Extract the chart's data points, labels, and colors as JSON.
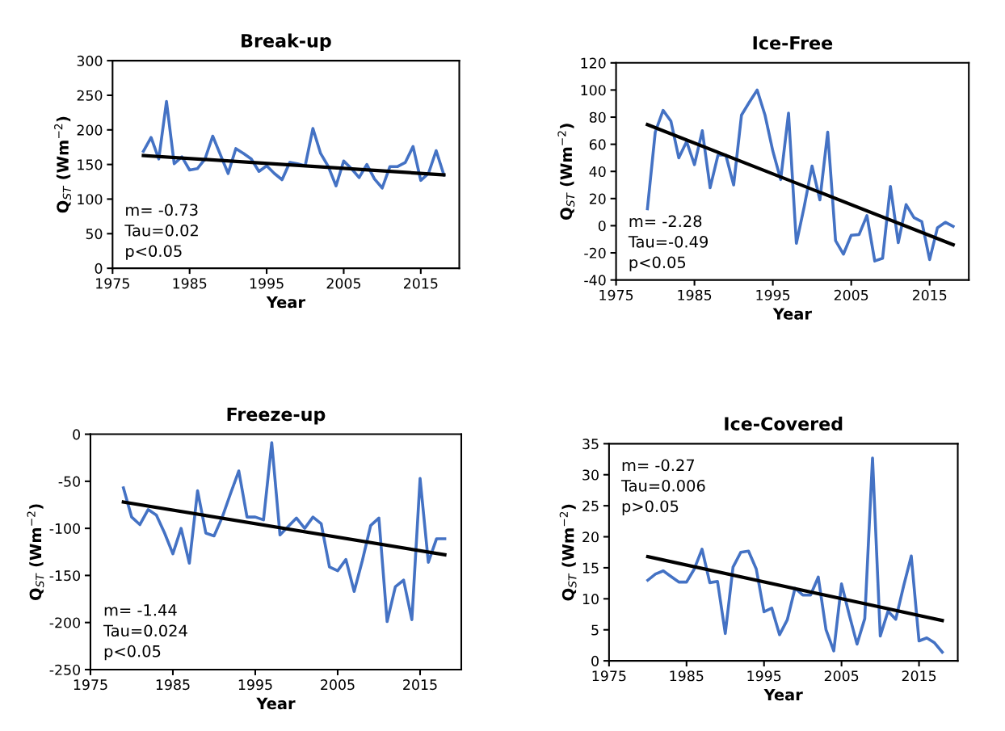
{
  "chart_data": [
    {
      "type": "line",
      "title": "Break-up",
      "xlabel": "Year",
      "ylabel": "Q$_{ST}$ (Wm$^{−2}$)",
      "xlim": [
        1975,
        2020
      ],
      "xticks": [
        1975,
        1985,
        1995,
        2005,
        2015
      ],
      "ylim": [
        0,
        300
      ],
      "yticks": [
        0,
        50,
        100,
        150,
        200,
        250,
        300
      ],
      "grid": false,
      "annotations": [
        "m= -0.73",
        "Tau=0.02",
        "p<0.05"
      ],
      "x": [
        1979,
        1980,
        1981,
        1982,
        1983,
        1984,
        1985,
        1986,
        1987,
        1988,
        1989,
        1990,
        1991,
        1992,
        1993,
        1994,
        1995,
        1996,
        1997,
        1998,
        1999,
        2000,
        2001,
        2002,
        2003,
        2004,
        2005,
        2006,
        2007,
        2008,
        2009,
        2010,
        2011,
        2012,
        2013,
        2014,
        2015,
        2016,
        2017,
        2018
      ],
      "series": [
        {
          "color": "#4472c4",
          "values": [
            169,
            189,
            158,
            241,
            151,
            161,
            142,
            144,
            158,
            191,
            164,
            137,
            173,
            166,
            158,
            140,
            148,
            137,
            128,
            153,
            151,
            148,
            202,
            166,
            147,
            119,
            155,
            144,
            131,
            150,
            129,
            116,
            147,
            147,
            153,
            176,
            127,
            137,
            170,
            135
          ]
        },
        {
          "type": "line",
          "color": "#000000",
          "x": [
            1979,
            2018
          ],
          "values": [
            163,
            135
          ]
        }
      ]
    },
    {
      "type": "line",
      "title": "Ice-Free",
      "xlabel": "Year",
      "ylabel": "Q$_{ST}$ (Wm$^{−2}$)",
      "xlim": [
        1975,
        2020
      ],
      "xticks": [
        1975,
        1985,
        1995,
        2005,
        2015
      ],
      "ylim": [
        -40,
        120
      ],
      "yticks": [
        -40,
        -20,
        0,
        20,
        40,
        60,
        80,
        100,
        120
      ],
      "grid": false,
      "annotations": [
        "m= -2.28",
        "Tau=-0.49",
        "p<0.05"
      ],
      "x": [
        1979,
        1980,
        1981,
        1982,
        1983,
        1984,
        1985,
        1986,
        1987,
        1988,
        1989,
        1990,
        1991,
        1992,
        1993,
        1994,
        1995,
        1996,
        1997,
        1998,
        1999,
        2000,
        2001,
        2002,
        2003,
        2004,
        2005,
        2006,
        2007,
        2008,
        2009,
        2010,
        2011,
        2012,
        2013,
        2014,
        2015,
        2016,
        2017,
        2018
      ],
      "series": [
        {
          "color": "#4472c4",
          "values": [
            12.5,
            69,
            85,
            77,
            50,
            62,
            45,
            70,
            28,
            52,
            52,
            30,
            81.5,
            91,
            100,
            81.5,
            55,
            34,
            83,
            -13,
            14,
            44,
            19,
            69,
            -11,
            -21,
            -7,
            -6.5,
            7.5,
            -26,
            -24,
            29,
            -12.5,
            15.5,
            6,
            3,
            -25,
            -1.5,
            2.5,
            -0.5
          ]
        },
        {
          "type": "line",
          "color": "#000000",
          "x": [
            1979,
            2018
          ],
          "values": [
            74.5,
            -14
          ]
        }
      ]
    },
    {
      "type": "line",
      "title": "Freeze-up",
      "xlabel": "Year",
      "ylabel": "Q$_{ST}$ (Wm$^{−2}$)",
      "xlim": [
        1975,
        2020
      ],
      "xticks": [
        1975,
        1985,
        1995,
        2005,
        2015
      ],
      "ylim": [
        -250,
        0
      ],
      "yticks": [
        -250,
        -200,
        -150,
        -100,
        -50,
        0
      ],
      "grid": false,
      "annotations": [
        "m= -1.44",
        "Tau=0.024",
        "p<0.05"
      ],
      "x": [
        1979,
        1980,
        1981,
        1982,
        1983,
        1984,
        1985,
        1986,
        1987,
        1988,
        1989,
        1990,
        1991,
        1992,
        1993,
        1994,
        1995,
        1996,
        1997,
        1998,
        1999,
        2000,
        2001,
        2002,
        2003,
        2004,
        2005,
        2006,
        2007,
        2008,
        2009,
        2010,
        2011,
        2012,
        2013,
        2014,
        2015,
        2016,
        2017,
        2018
      ],
      "series": [
        {
          "color": "#4472c4",
          "values": [
            -57,
            -88,
            -96,
            -80,
            -86,
            -105,
            -127,
            -100,
            -137,
            -60,
            -105,
            -108,
            -88,
            -63,
            -39,
            -88,
            -88,
            -91,
            -9,
            -107,
            -98,
            -89,
            -100,
            -88,
            -95,
            -141,
            -145,
            -133,
            -167,
            -134,
            -97,
            -89,
            -199,
            -162,
            -155,
            -197,
            -47,
            -136,
            -111,
            -111
          ]
        },
        {
          "type": "line",
          "color": "#000000",
          "x": [
            1979,
            2018
          ],
          "values": [
            -72,
            -128
          ]
        }
      ]
    },
    {
      "type": "line",
      "title": "Ice-Covered",
      "xlabel": "Year",
      "ylabel": "Q$_{ST}$ (Wm$^{−2}$)",
      "xlim": [
        1975,
        2020
      ],
      "xticks": [
        1975,
        1985,
        1995,
        2005,
        2015
      ],
      "ylim": [
        0,
        35
      ],
      "yticks": [
        0,
        5,
        10,
        15,
        20,
        25,
        30,
        35
      ],
      "grid": false,
      "annotations": [
        "m= -0.27",
        "Tau=0.006",
        "p>0.05"
      ],
      "x": [
        1980,
        1981,
        1982,
        1983,
        1984,
        1985,
        1986,
        1987,
        1988,
        1989,
        1990,
        1991,
        1992,
        1993,
        1994,
        1995,
        1996,
        1997,
        1998,
        1999,
        2000,
        2001,
        2002,
        2003,
        2004,
        2005,
        2006,
        2007,
        2008,
        2009,
        2010,
        2011,
        2012,
        2013,
        2014,
        2015,
        2016,
        2017,
        2018
      ],
      "series": [
        {
          "color": "#4472c4",
          "values": [
            13.0,
            14.0,
            14.5,
            13.6,
            12.7,
            12.7,
            14.8,
            18.0,
            12.6,
            12.8,
            4.4,
            15.1,
            17.5,
            17.7,
            14.8,
            7.9,
            8.5,
            4.2,
            6.6,
            11.7,
            10.6,
            10.6,
            13.5,
            5.0,
            1.6,
            12.4,
            7.4,
            2.7,
            6.8,
            32.7,
            4.0,
            8.0,
            6.7,
            12.0,
            16.9,
            3.2,
            3.7,
            2.9,
            1.4
          ]
        },
        {
          "type": "line",
          "color": "#000000",
          "x": [
            1980,
            2018
          ],
          "values": [
            16.8,
            6.5
          ]
        }
      ]
    }
  ]
}
